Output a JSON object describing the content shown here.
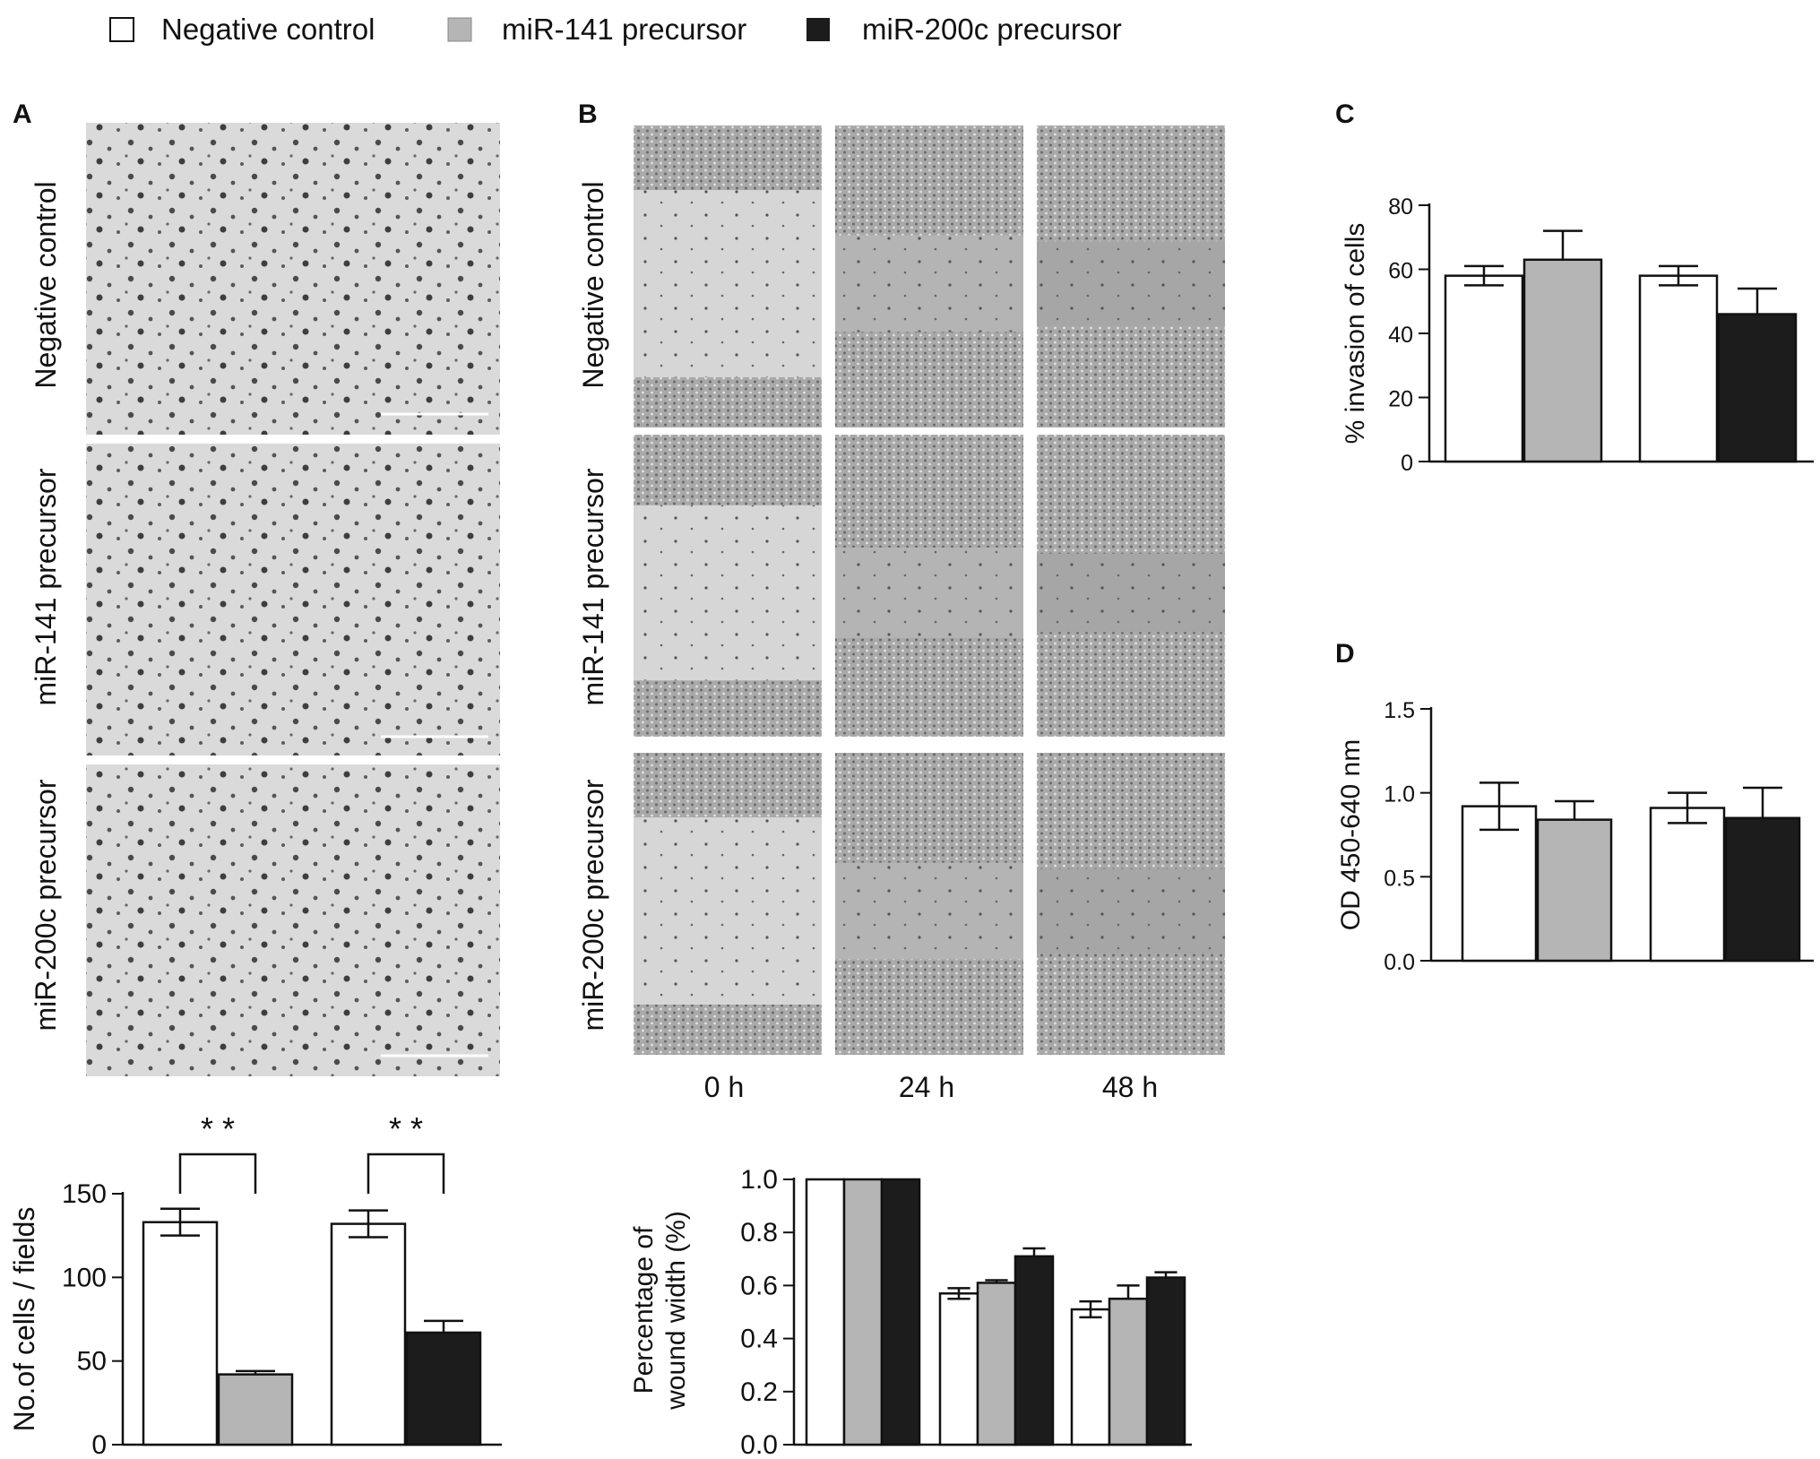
{
  "legend": {
    "items": [
      {
        "label": "Negative control",
        "color": "#ffffff"
      },
      {
        "label": "miR-141 precursor",
        "color": "#b5b5b5"
      },
      {
        "label": "miR-200c precursor",
        "color": "#1c1c1c"
      }
    ]
  },
  "panels": {
    "A": {
      "letter": "A",
      "row_labels": [
        "Negative control",
        "miR-141 precursor",
        "miR-200c precursor"
      ]
    },
    "B": {
      "letter": "B",
      "row_labels": [
        "Negative control",
        "miR-141 precursor",
        "miR-200c precursor"
      ],
      "col_labels": [
        "0 h",
        "24 h",
        "48 h"
      ]
    },
    "C": {
      "letter": "C"
    },
    "D": {
      "letter": "D"
    }
  },
  "chart_data": [
    {
      "id": "A-bottom",
      "type": "bar",
      "ylabel": "No.of cells / fields",
      "ylim": [
        0,
        150
      ],
      "yticks": [
        0,
        50,
        100,
        150
      ],
      "groups": [
        {
          "bars": [
            {
              "series": "Negative control",
              "value": 133,
              "err": 8
            },
            {
              "series": "miR-141 precursor",
              "value": 42,
              "err": 2
            }
          ],
          "significance": "* *"
        },
        {
          "bars": [
            {
              "series": "Negative control",
              "value": 132,
              "err": 8
            },
            {
              "series": "miR-200c precursor",
              "value": 67,
              "err": 7
            }
          ],
          "significance": "* *"
        }
      ]
    },
    {
      "id": "B-bottom",
      "type": "bar",
      "ylabel": "Percentage of wound width (%)",
      "ylim": [
        0,
        1.0
      ],
      "yticks": [
        "0.0",
        "0.2",
        "0.4",
        "0.6",
        "0.8",
        "1.0"
      ],
      "groups": [
        {
          "bars": [
            {
              "series": "Negative control",
              "value": 1.0,
              "err": 0
            },
            {
              "series": "miR-141 precursor",
              "value": 1.0,
              "err": 0
            },
            {
              "series": "miR-200c precursor",
              "value": 1.0,
              "err": 0
            }
          ]
        },
        {
          "bars": [
            {
              "series": "Negative control",
              "value": 0.57,
              "err": 0.02
            },
            {
              "series": "miR-141 precursor",
              "value": 0.61,
              "err": 0.01
            },
            {
              "series": "miR-200c precursor",
              "value": 0.71,
              "err": 0.03
            }
          ]
        },
        {
          "bars": [
            {
              "series": "Negative control",
              "value": 0.51,
              "err": 0.03
            },
            {
              "series": "miR-141 precursor",
              "value": 0.55,
              "err": 0.05
            },
            {
              "series": "miR-200c precursor",
              "value": 0.63,
              "err": 0.02
            }
          ]
        }
      ]
    },
    {
      "id": "C",
      "type": "bar",
      "ylabel": "% invasion  of cells",
      "ylim": [
        0,
        80
      ],
      "yticks": [
        0,
        20,
        40,
        60,
        80
      ],
      "groups": [
        {
          "bars": [
            {
              "series": "Negative control",
              "value": 58,
              "err": 3
            },
            {
              "series": "miR-141 precursor",
              "value": 63,
              "err": 9
            }
          ]
        },
        {
          "bars": [
            {
              "series": "Negative control",
              "value": 58,
              "err": 3
            },
            {
              "series": "miR-200c precursor",
              "value": 46,
              "err": 8
            }
          ]
        }
      ]
    },
    {
      "id": "D",
      "type": "bar",
      "ylabel": "OD  450-640 nm",
      "ylim": [
        0,
        1.5
      ],
      "yticks": [
        "0.0",
        "0.5",
        "1.0",
        "1.5"
      ],
      "groups": [
        {
          "bars": [
            {
              "series": "Negative control",
              "value": 0.92,
              "err": 0.14
            },
            {
              "series": "miR-141 precursor",
              "value": 0.84,
              "err": 0.11
            }
          ]
        },
        {
          "bars": [
            {
              "series": "Negative control",
              "value": 0.91,
              "err": 0.09
            },
            {
              "series": "miR-200c precursor",
              "value": 0.85,
              "err": 0.18
            }
          ]
        }
      ]
    }
  ]
}
